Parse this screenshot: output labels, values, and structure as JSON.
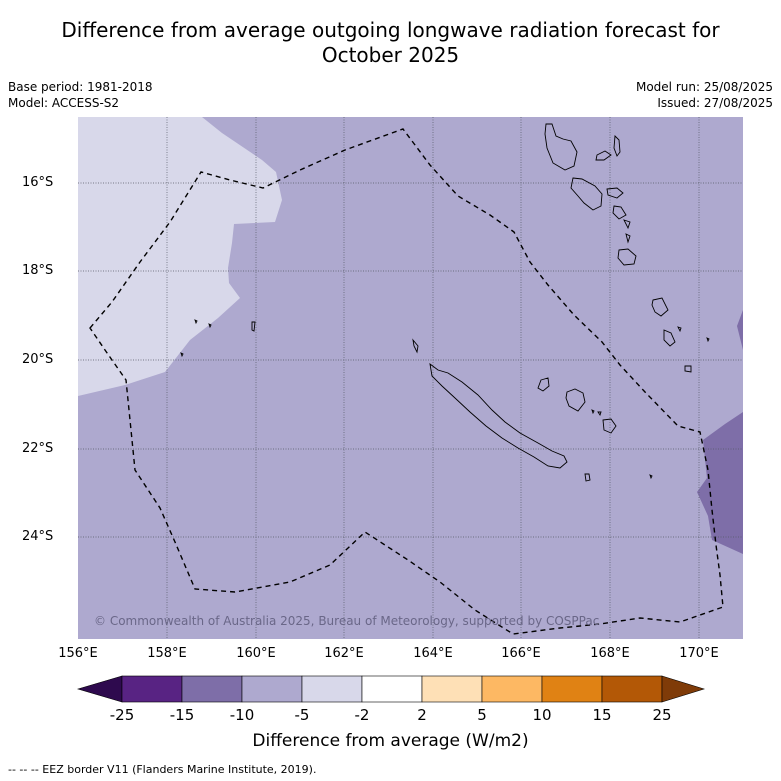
{
  "title_line1": "Difference from average outgoing longwave radiation forecast for",
  "title_line2": "October 2025",
  "meta_left": [
    "Base period: 1981-2018",
    "Model: ACCESS-S2"
  ],
  "meta_right": [
    "Model run: 25/08/2025",
    "Issued: 27/08/2025"
  ],
  "lat_labels": [
    "16°S",
    "18°S",
    "20°S",
    "22°S",
    "24°S"
  ],
  "lon_labels": [
    "156°E",
    "158°E",
    "160°E",
    "162°E",
    "164°E",
    "166°E",
    "168°E",
    "170°E"
  ],
  "copyright": "© Commonwealth of Australia 2025, Bureau of Meteorology, supported by COSPPac",
  "colorbar": {
    "ticks": [
      "-25",
      "-15",
      "-10",
      "-5",
      "-2",
      "2",
      "5",
      "10",
      "15",
      "25"
    ],
    "colors": [
      "#2e0a4e",
      "#582383",
      "#7e6ea8",
      "#aea9cf",
      "#d8d8ea",
      "#ffffff",
      "#fee0b6",
      "#fdb863",
      "#e08214",
      "#b35806",
      "#7f3b08"
    ],
    "label": "Difference from average (W/m2)"
  },
  "footer": "--  --  -- EEZ border V11 (Flanders Marine Institute, 2019).",
  "map_colors": {
    "base": "#aea9cf",
    "light": "#d8d8ea",
    "dark": "#7e6ea8"
  }
}
